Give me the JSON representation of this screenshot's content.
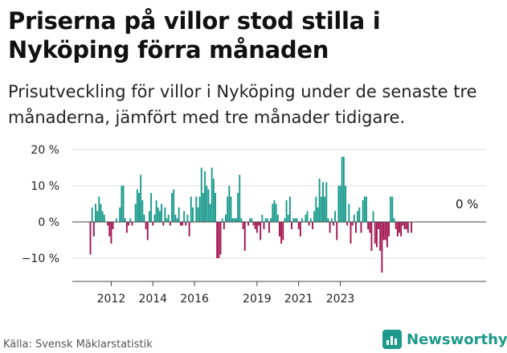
{
  "title": "Priserna på villor stod stilla i Nyköping förra månaden",
  "subtitle": "Prisutveckling för villor i Nyköping under de senaste tre månaderna, jämfört med tre månader tidigare.",
  "source": "Källa: Svensk Mäklarstatistik",
  "logo": {
    "text": "Newsworthy",
    "icon": "bar-chart-icon",
    "color": "#1d9a8a"
  },
  "colors": {
    "positive": "#1a9a8c",
    "negative": "#a3134f",
    "grid": "#dddddd"
  },
  "chart_data": {
    "type": "bar",
    "ylim": [
      -15,
      20
    ],
    "y_ticks": [
      20,
      10,
      0,
      -10
    ],
    "y_tick_labels": [
      "20 %",
      "10 %",
      "0 %",
      "−10 %"
    ],
    "x_ticks": [
      "2012",
      "2014",
      "2016",
      "2019",
      "2021",
      "2023"
    ],
    "x_tick_months": [
      12,
      36,
      60,
      96,
      120,
      144
    ],
    "annotation": "0 %",
    "start_month": "2011-11",
    "values": [
      -9,
      4,
      -4,
      5,
      3,
      7,
      5,
      3,
      2,
      0,
      -1,
      -4,
      -6,
      -2,
      0,
      1,
      0,
      4,
      10,
      10,
      1,
      -3,
      -1,
      1,
      -1,
      0,
      5,
      9,
      8,
      13,
      6,
      2,
      -2,
      -5,
      3,
      8,
      -1,
      2,
      6,
      4,
      3,
      5,
      -1,
      4,
      1,
      2,
      -1,
      8,
      9,
      2,
      1,
      4,
      -1,
      -1,
      3,
      -1,
      2,
      -4,
      7,
      4,
      0,
      7,
      4,
      7,
      15,
      8,
      14,
      10,
      9,
      5,
      15,
      12,
      8,
      -10,
      -10,
      -9,
      1,
      -2,
      2,
      7,
      10,
      7,
      1,
      1,
      1,
      8,
      13,
      1,
      -2,
      -8,
      0,
      -1,
      1,
      1,
      -1,
      -2,
      -3,
      -1,
      -5,
      2,
      -2,
      1,
      1,
      -3,
      1,
      5,
      6,
      5,
      2,
      -4,
      -6,
      -5,
      1,
      6,
      2,
      7,
      -2,
      1,
      1,
      1,
      -2,
      -4,
      1,
      0,
      2,
      3,
      -1,
      1,
      -2,
      3,
      7,
      4,
      12,
      7,
      11,
      7,
      11,
      1,
      -3,
      1,
      -1,
      3,
      -5,
      10,
      10,
      18,
      18,
      10,
      -1,
      5,
      -6,
      -1,
      2,
      -3,
      3,
      4,
      -3,
      6,
      7,
      7,
      -2,
      -3,
      -8,
      3,
      -6,
      -7,
      -2,
      -8,
      -14,
      -5,
      -5,
      -7,
      -4,
      7,
      7,
      1,
      -2,
      -4,
      -3,
      -4,
      -1,
      -2,
      -2,
      -3,
      0,
      -3,
      0
    ]
  }
}
